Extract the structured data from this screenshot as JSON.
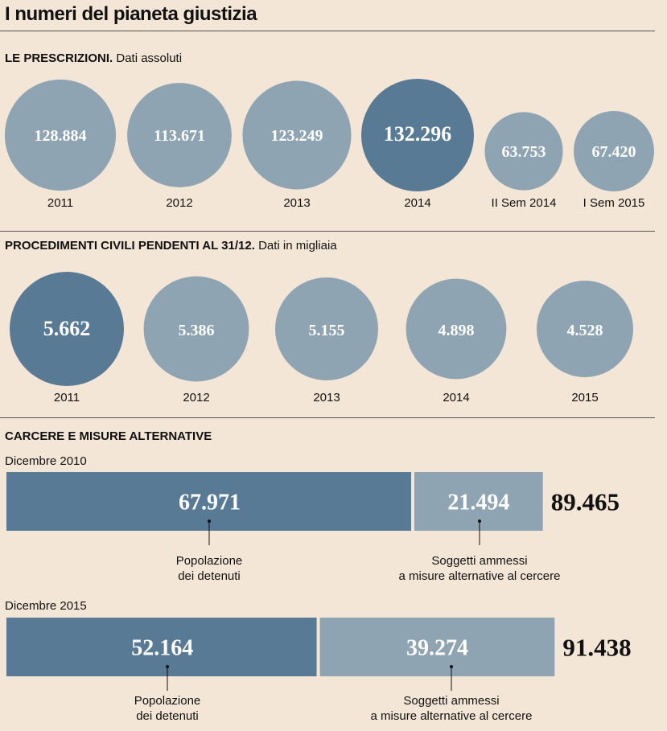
{
  "title": "I numeri del pianeta giustizia",
  "colors": {
    "highlight": "#587a94",
    "normal": "#8fa4b3",
    "background": "#f4e6d6"
  },
  "chart_data": [
    {
      "type": "bubble",
      "title": "LE PRESCRIZIONI.",
      "subtitle": "Dati assoluti",
      "categories": [
        "2011",
        "2012",
        "2013",
        "2014",
        "II Sem 2014",
        "I Sem 2015"
      ],
      "values": [
        128884,
        113671,
        123249,
        132296,
        63753,
        67420
      ],
      "value_labels": [
        "128.884",
        "113.671",
        "123.249",
        "132.296",
        "63.753",
        "67.420"
      ],
      "highlight_index": 3
    },
    {
      "type": "bubble",
      "title": "PROCEDIMENTI CIVILI PENDENTI AL 31/12.",
      "subtitle": "Dati in migliaia",
      "categories": [
        "2011",
        "2012",
        "2013",
        "2014",
        "2015"
      ],
      "values": [
        5662,
        5386,
        5155,
        4898,
        4528
      ],
      "value_labels": [
        "5.662",
        "5.386",
        "5.155",
        "4.898",
        "4.528"
      ],
      "highlight_index": 0
    },
    {
      "type": "stacked-bar",
      "title": "CARCERE E MISURE ALTERNATIVE",
      "rows": [
        {
          "label": "Dicembre 2010",
          "segments": [
            {
              "name": "Popolazione dei detenuti",
              "value": 67971,
              "value_label": "67.971",
              "note": [
                "Popolazione",
                "dei detenuti"
              ]
            },
            {
              "name": "Soggetti ammessi a misure alternative al cercere",
              "value": 21494,
              "value_label": "21.494",
              "note": [
                "Soggetti ammessi",
                "a misure alternative al cercere"
              ]
            }
          ],
          "total": 89465,
          "total_label": "89.465"
        },
        {
          "label": "Dicembre 2015",
          "segments": [
            {
              "name": "Popolazione dei detenuti",
              "value": 52164,
              "value_label": "52.164",
              "note": [
                "Popolazione",
                "dei detenuti"
              ]
            },
            {
              "name": "Soggetti ammessi a misure alternative al cercere",
              "value": 39274,
              "value_label": "39.274",
              "note": [
                "Soggetti ammessi",
                "a misure alternative al cercere"
              ]
            }
          ],
          "total": 91438,
          "total_label": "91.438"
        }
      ]
    }
  ]
}
